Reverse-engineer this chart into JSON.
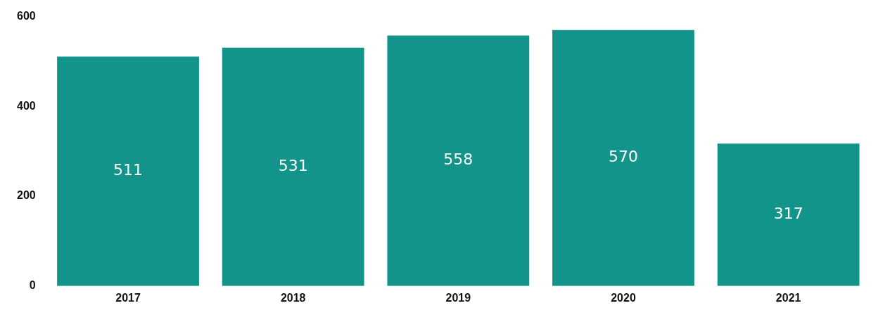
{
  "chart_data": {
    "type": "bar",
    "categories": [
      "2017",
      "2018",
      "2019",
      "2020",
      "2021"
    ],
    "values": [
      511,
      531,
      558,
      570,
      317
    ],
    "color": "#12948a",
    "ylim": [
      0,
      600
    ],
    "yticks": [
      0,
      200,
      400,
      600
    ],
    "grid": false,
    "data_labels": true,
    "legend": false
  }
}
